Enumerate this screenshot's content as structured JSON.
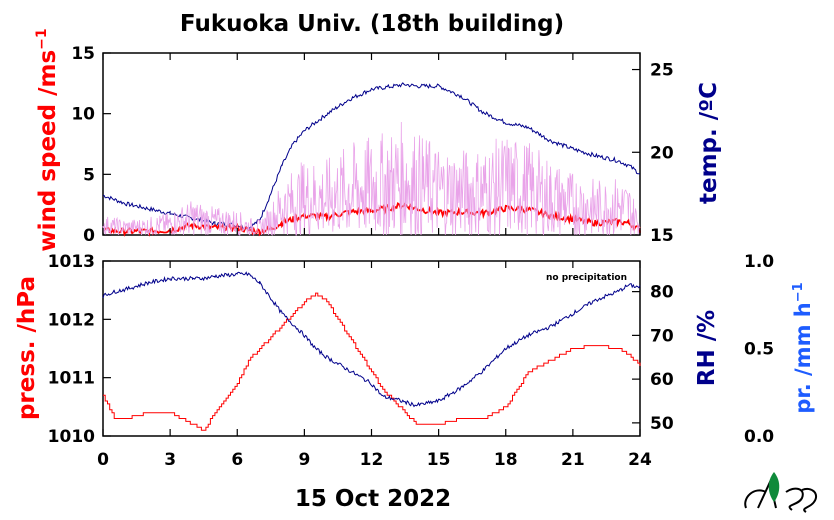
{
  "title": "Fukuoka Univ. (18th building)",
  "date_label": "15 Oct 2022",
  "note": "no precipitation",
  "colors": {
    "wind": "#ff0000",
    "wind_gust": "#e9a3e9",
    "temp": "#00008b",
    "press": "#ff0000",
    "rh": "#00008b",
    "precip": "#1e5cff"
  },
  "top_panel": {
    "left_axis": {
      "label": "wind speed /ms",
      "superscript": "−1",
      "range": [
        0,
        15
      ],
      "ticks": [
        "0",
        "5",
        "10",
        "15"
      ]
    },
    "right_axis": {
      "label": "temp. /ºC",
      "range": [
        15,
        26
      ],
      "ticks": [
        "15",
        "20",
        "25"
      ]
    }
  },
  "bottom_panel": {
    "left_axis": {
      "label": "press. /hPa",
      "range": [
        1010,
        1013
      ],
      "ticks": [
        "1010",
        "1011",
        "1012",
        "1013"
      ]
    },
    "right_axis": {
      "label": "RH /%",
      "range": [
        47,
        87
      ],
      "ticks": [
        "50",
        "60",
        "70",
        "80"
      ]
    },
    "far_right_axis": {
      "label": "pr. /mm h",
      "superscript": "−1",
      "range": [
        0,
        1
      ],
      "ticks": [
        "0.0",
        "0.5",
        "1.0"
      ]
    }
  },
  "x_axis": {
    "range": [
      0,
      24
    ],
    "ticks": [
      "0",
      "3",
      "6",
      "9",
      "12",
      "15",
      "18",
      "21",
      "24"
    ]
  },
  "chart_data": [
    {
      "type": "line",
      "panel": "top",
      "x": [
        0,
        1,
        2,
        3,
        4,
        5,
        6,
        6.5,
        7,
        7.5,
        8,
        8.5,
        9,
        10,
        11,
        12,
        13,
        13.5,
        14,
        15,
        16,
        17,
        18,
        19,
        20,
        21,
        22,
        23,
        23.5,
        24
      ],
      "series": [
        {
          "name": "temp",
          "axis": "right",
          "values": [
            17.4,
            16.9,
            16.6,
            16.3,
            16.0,
            15.7,
            15.6,
            15.4,
            15.9,
            17.5,
            19.2,
            20.5,
            21.3,
            22.3,
            23.2,
            23.8,
            24.0,
            24.1,
            24.0,
            24.0,
            23.4,
            22.4,
            21.8,
            21.5,
            20.7,
            20.2,
            19.8,
            19.5,
            19.2,
            18.7
          ]
        },
        {
          "name": "wind speed",
          "axis": "left",
          "values": [
            0.4,
            0.3,
            0.3,
            0.4,
            0.8,
            0.6,
            0.6,
            0.4,
            0.3,
            0.5,
            1.0,
            1.3,
            1.6,
            1.5,
            1.9,
            2.0,
            2.3,
            2.5,
            2.2,
            1.8,
            1.9,
            1.8,
            2.2,
            2.1,
            1.6,
            1.3,
            1.0,
            1.1,
            1.0,
            0.4
          ]
        },
        {
          "name": "wind gust",
          "axis": "left",
          "values": [
            0.8,
            0.6,
            0.7,
            0.9,
            1.4,
            1.1,
            1.0,
            0.7,
            0.6,
            1.2,
            2.2,
            2.6,
            3.0,
            3.0,
            3.6,
            3.9,
            4.2,
            4.6,
            4.1,
            3.6,
            3.4,
            3.5,
            4.0,
            3.7,
            3.0,
            2.5,
            2.2,
            2.3,
            2.1,
            0.8
          ]
        }
      ]
    },
    {
      "type": "line",
      "panel": "bottom",
      "x": [
        0,
        0.5,
        1,
        2,
        3,
        4,
        4.5,
        5,
        6,
        6.5,
        7,
        8,
        9,
        9.5,
        10,
        11,
        12,
        12.5,
        13,
        14,
        15,
        16,
        17,
        18,
        18.5,
        19,
        20,
        21,
        22,
        23,
        23.5,
        24
      ],
      "series": [
        {
          "name": "press",
          "axis": "left",
          "values": [
            1010.7,
            1010.3,
            1010.3,
            1010.4,
            1010.4,
            1010.2,
            1010.1,
            1010.4,
            1010.9,
            1011.3,
            1011.5,
            1011.9,
            1012.3,
            1012.45,
            1012.3,
            1011.7,
            1011.1,
            1010.8,
            1010.6,
            1010.2,
            1010.2,
            1010.3,
            1010.3,
            1010.5,
            1010.8,
            1011.1,
            1011.3,
            1011.5,
            1011.55,
            1011.5,
            1011.4,
            1011.2
          ]
        },
        {
          "name": "RH",
          "axis": "right",
          "values": [
            79,
            80,
            80.5,
            82,
            83,
            83,
            83,
            83.5,
            84,
            84,
            82,
            75,
            70,
            67,
            65,
            62,
            59,
            56,
            55.5,
            54,
            55,
            58,
            62,
            67,
            68.5,
            70,
            72,
            75,
            78,
            80,
            81.5,
            81
          ]
        },
        {
          "name": "precipitation",
          "axis": "far_right",
          "values": [
            0,
            0,
            0,
            0,
            0,
            0,
            0,
            0,
            0,
            0,
            0,
            0,
            0,
            0,
            0,
            0,
            0,
            0,
            0,
            0,
            0,
            0,
            0,
            0,
            0,
            0,
            0,
            0,
            0,
            0,
            0,
            0
          ]
        }
      ]
    }
  ]
}
